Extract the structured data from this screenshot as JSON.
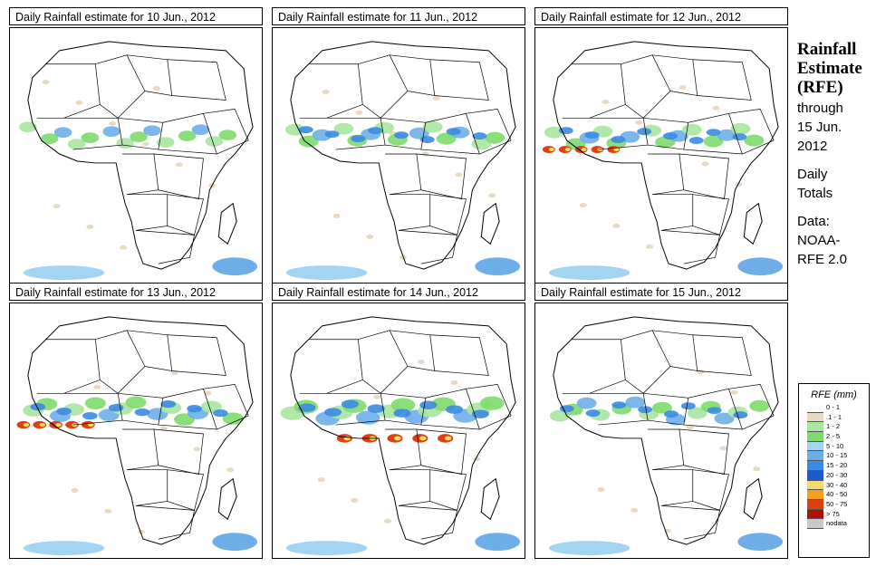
{
  "panels": [
    {
      "title": "Daily Rainfall estimate for  10 Jun., 2012",
      "intensity": 0.3,
      "heavy": false
    },
    {
      "title": "Daily Rainfall estimate for  11 Jun., 2012",
      "intensity": 0.5,
      "heavy": false
    },
    {
      "title": "Daily Rainfall estimate for  12 Jun., 2012",
      "intensity": 0.5,
      "heavy": true
    },
    {
      "title": "Daily Rainfall estimate for  13 Jun., 2012",
      "intensity": 0.6,
      "heavy": true
    },
    {
      "title": "Daily Rainfall estimate for  14 Jun., 2012",
      "intensity": 0.9,
      "heavy": true
    },
    {
      "title": "Daily Rainfall estimate for  15 Jun., 2012",
      "intensity": 0.5,
      "heavy": false
    }
  ],
  "side": {
    "line1": "Rainfall",
    "line2": "Estimate",
    "line3": "(RFE)",
    "through": "through",
    "date": "15 Jun.",
    "year": "2012",
    "daily": "Daily",
    "totals": "Totals",
    "data": "Data:",
    "noaa": "NOAA-",
    "rfe": "RFE 2.0"
  },
  "legend": {
    "title": "RFE (mm)",
    "items": [
      {
        "label": "0 - 1",
        "color": "#ffffff"
      },
      {
        "label": ".1 - 1",
        "color": "#e9d9c2"
      },
      {
        "label": "1 - 2",
        "color": "#a9e6a0"
      },
      {
        "label": "2 - 5",
        "color": "#7edc6c"
      },
      {
        "label": "5 - 10",
        "color": "#a3d4f2"
      },
      {
        "label": "10 - 15",
        "color": "#6eaee8"
      },
      {
        "label": "15 - 20",
        "color": "#3c8be3"
      },
      {
        "label": "20 - 30",
        "color": "#2058d0"
      },
      {
        "label": "30 - 40",
        "color": "#f5dc64"
      },
      {
        "label": "40 - 50",
        "color": "#f5a020"
      },
      {
        "label": "50 - 75",
        "color": "#e04010"
      },
      {
        "label": "> 75",
        "color": "#b01000"
      },
      {
        "label": "nodata",
        "color": "#c8c8c8"
      }
    ]
  }
}
